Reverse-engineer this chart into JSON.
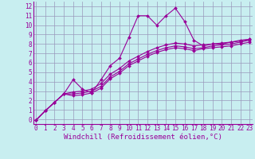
{
  "xlabel": "Windchill (Refroidissement éolien,°C)",
  "background_color": "#c8eef0",
  "grid_color": "#9999bb",
  "line_color": "#990099",
  "x_ticks": [
    0,
    1,
    2,
    3,
    4,
    5,
    6,
    7,
    8,
    9,
    10,
    11,
    12,
    13,
    14,
    15,
    16,
    17,
    18,
    19,
    20,
    21,
    22,
    23
  ],
  "y_ticks": [
    0,
    1,
    2,
    3,
    4,
    5,
    6,
    7,
    8,
    9,
    10,
    11,
    12
  ],
  "xlim": [
    -0.3,
    23.3
  ],
  "ylim": [
    -0.5,
    12.5
  ],
  "x_main": [
    0,
    1,
    2,
    3,
    4,
    5,
    6,
    7,
    8,
    9,
    10,
    11,
    12,
    13,
    14,
    15,
    16,
    17,
    18,
    19,
    20,
    21,
    22,
    23
  ],
  "y_main": [
    -0.1,
    0.9,
    1.8,
    2.7,
    4.2,
    3.2,
    2.8,
    4.2,
    5.7,
    6.5,
    8.7,
    11.0,
    11.0,
    10.0,
    11.0,
    11.8,
    10.4,
    8.4,
    7.8,
    8.0,
    8.0,
    8.2,
    8.4,
    8.5
  ],
  "x_s": [
    0,
    1,
    2,
    3,
    4,
    5,
    6,
    7,
    8,
    9,
    10,
    11,
    12,
    13,
    14,
    15,
    16,
    17,
    18,
    19,
    20,
    21,
    22,
    23
  ],
  "y_s1": [
    -0.1,
    0.9,
    1.8,
    2.7,
    2.9,
    3.0,
    3.2,
    3.8,
    4.8,
    5.4,
    6.2,
    6.7,
    7.2,
    7.6,
    7.9,
    8.1,
    8.0,
    7.8,
    7.9,
    8.0,
    8.1,
    8.2,
    8.3,
    8.5
  ],
  "y_s2": [
    -0.1,
    0.9,
    1.8,
    2.7,
    2.7,
    2.8,
    3.0,
    3.5,
    4.5,
    5.1,
    5.9,
    6.4,
    6.9,
    7.3,
    7.6,
    7.8,
    7.7,
    7.5,
    7.6,
    7.8,
    7.9,
    8.0,
    8.2,
    8.4
  ],
  "y_s3": [
    -0.1,
    0.9,
    1.8,
    2.7,
    2.5,
    2.6,
    2.8,
    3.3,
    4.3,
    4.9,
    5.7,
    6.2,
    6.7,
    7.1,
    7.4,
    7.6,
    7.5,
    7.3,
    7.5,
    7.6,
    7.7,
    7.8,
    8.0,
    8.2
  ],
  "marker": "D",
  "markersize": 2.0,
  "linewidth": 0.8,
  "tick_fontsize": 5.5,
  "label_fontsize": 6.5
}
